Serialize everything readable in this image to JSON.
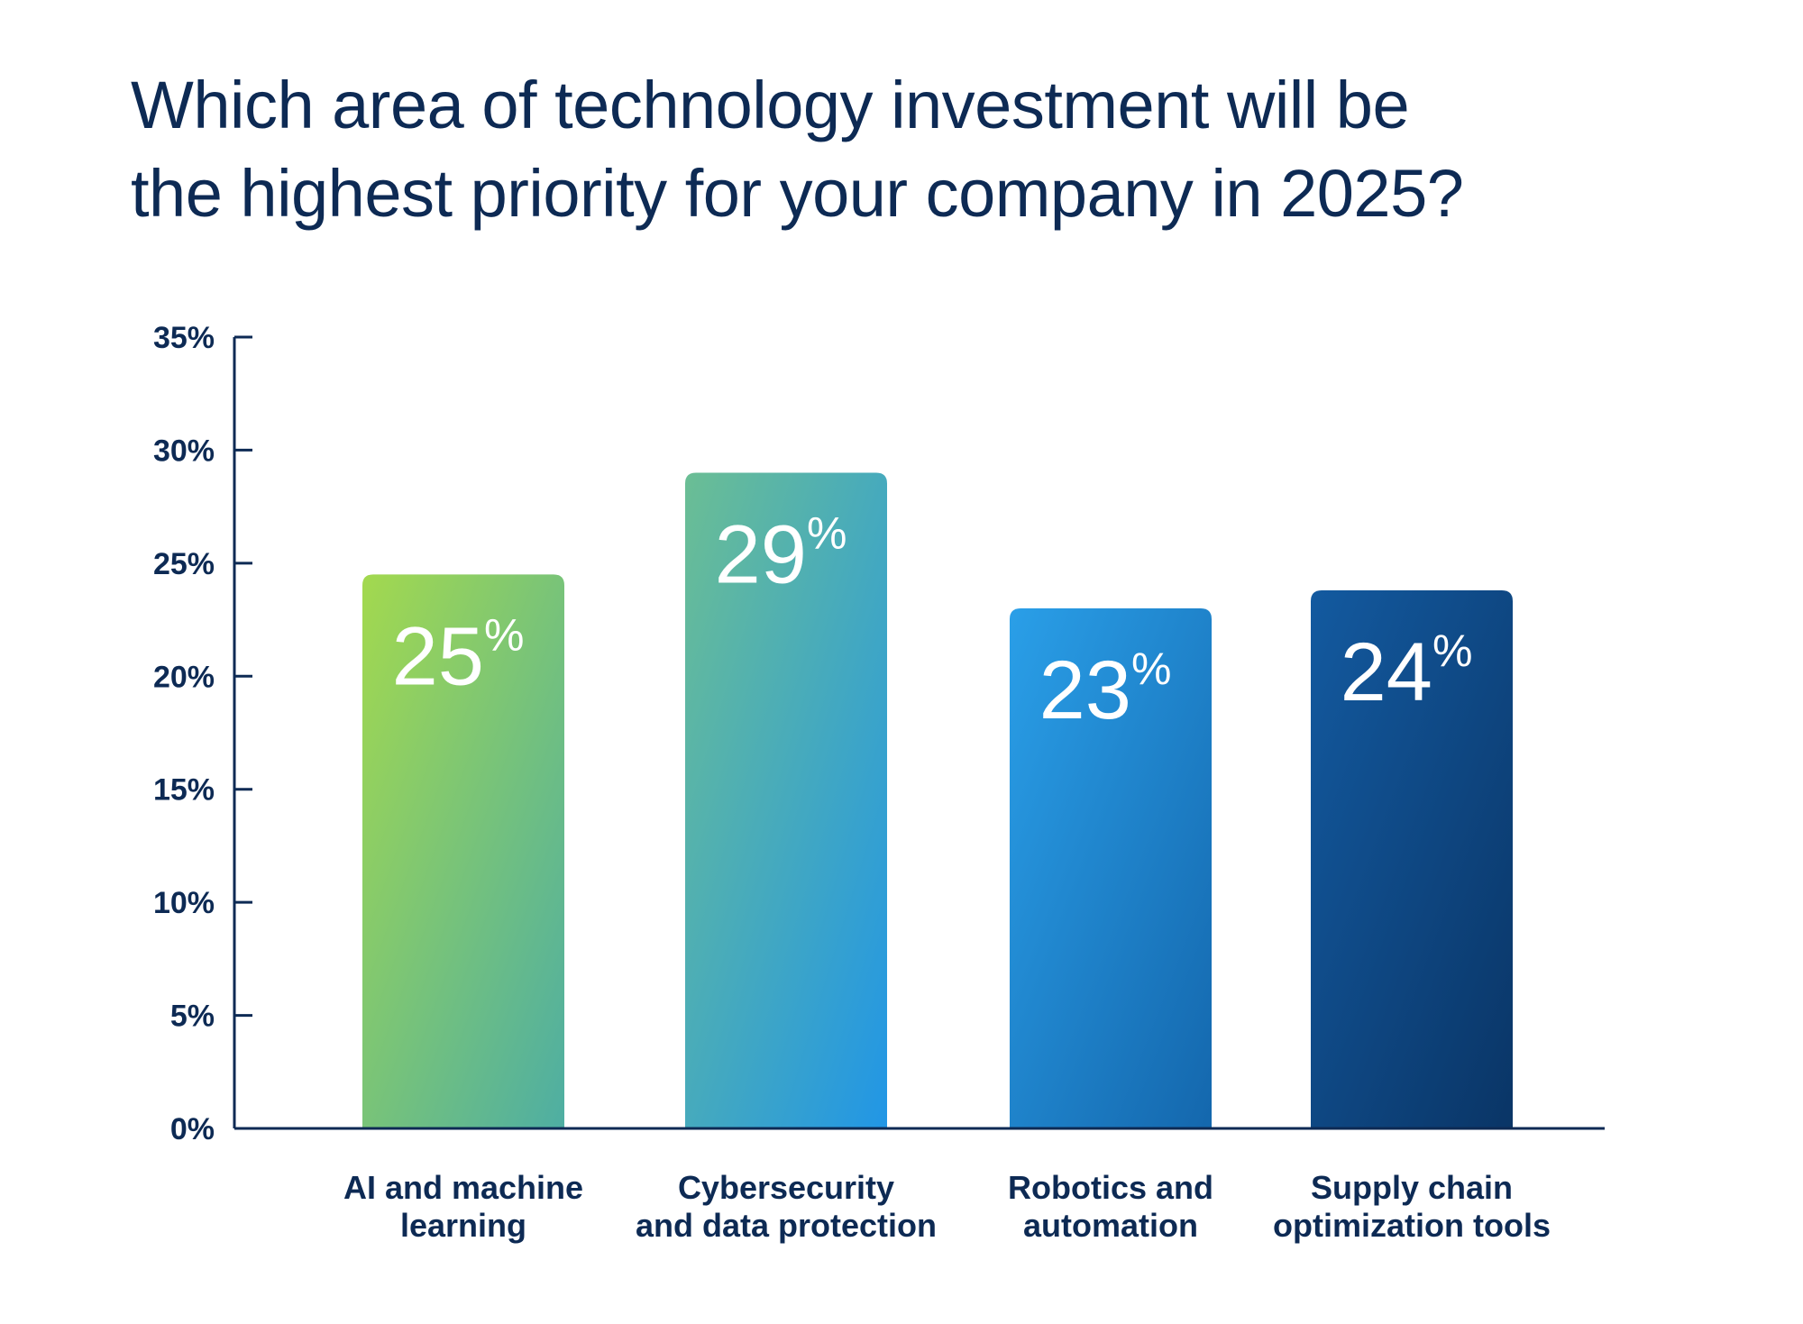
{
  "title_lines": [
    "Which area of technology investment will be",
    "the highest priority for your company in 2025?"
  ],
  "colors": {
    "text": "#0d2a54",
    "axis": "#0d2a54",
    "bar_gradients": [
      [
        "#a3d94e",
        "#4eaea3"
      ],
      [
        "#6bbe94",
        "#2196e6"
      ],
      [
        "#2a9fe8",
        "#1467ad"
      ],
      [
        "#135aa0",
        "#0a3566"
      ]
    ]
  },
  "chart_data": {
    "type": "bar",
    "title": "Which area of technology investment will be the highest priority for your company in 2025?",
    "categories": [
      [
        "AI and machine",
        "learning"
      ],
      [
        "Cybersecurity",
        "and data protection"
      ],
      [
        "Robotics and",
        "automation"
      ],
      [
        "Supply chain",
        "optimization tools"
      ]
    ],
    "values": [
      24.5,
      29,
      23,
      23.8
    ],
    "value_labels": [
      "25",
      "29",
      "23",
      "24"
    ],
    "value_suffix": "%",
    "ylim": [
      0,
      35
    ],
    "yticks": [
      0,
      5,
      10,
      15,
      20,
      25,
      30,
      35
    ],
    "ytick_labels": [
      "0%",
      "5%",
      "10%",
      "15%",
      "20%",
      "25%",
      "30%",
      "35%"
    ],
    "xlabel": "",
    "ylabel": "",
    "grid": false,
    "legend": "none"
  }
}
